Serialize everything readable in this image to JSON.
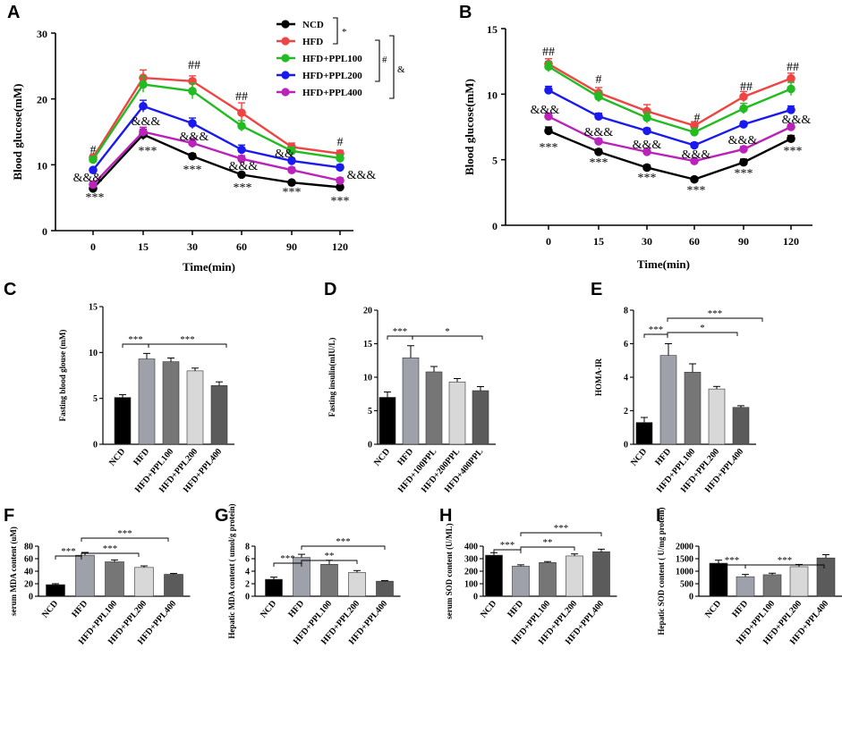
{
  "colors": {
    "NCD": "#000000",
    "HFD": "#ee4444",
    "HFD+PPL100": "#22bb22",
    "HFD+PPL200": "#1a1aee",
    "HFD+PPL400": "#bb22bb"
  },
  "legend": {
    "items": [
      "NCD",
      "HFD",
      "HFD+PPL100",
      "HFD+PPL200",
      "HFD+PPL400"
    ],
    "sig_ncd_hfd": "*",
    "sig_hfd_group": "#",
    "sig_all": "&"
  },
  "chart_data": [
    {
      "id": "A",
      "type": "line",
      "ylabel": "Blood glucose(mM)",
      "xlabel": "Time(min)",
      "x": [
        "0",
        "15",
        "30",
        "60",
        "90",
        "120"
      ],
      "ylim": [
        0,
        30
      ],
      "yticks": [
        0,
        10,
        20,
        30
      ],
      "series": [
        {
          "name": "NCD",
          "values": [
            6.4,
            14.6,
            11.3,
            8.5,
            7.3,
            6.6
          ],
          "err": [
            0.3,
            0.8,
            0.4,
            0.3,
            0.3,
            0.3
          ]
        },
        {
          "name": "HFD",
          "values": [
            11.1,
            23.2,
            22.7,
            17.9,
            12.7,
            11.7
          ],
          "err": [
            0.4,
            1.2,
            0.8,
            1.5,
            0.6,
            0.5
          ]
        },
        {
          "name": "HFD+PPL100",
          "values": [
            10.8,
            22.2,
            21.2,
            15.9,
            12.1,
            11.0
          ],
          "err": [
            0.4,
            1.2,
            1.2,
            0.8,
            0.6,
            0.5
          ]
        },
        {
          "name": "HFD+PPL200",
          "values": [
            9.2,
            18.9,
            16.3,
            12.3,
            10.6,
            9.6
          ],
          "err": [
            0.3,
            0.9,
            0.8,
            0.7,
            0.4,
            0.4
          ]
        },
        {
          "name": "HFD+PPL400",
          "values": [
            7.0,
            15.0,
            13.3,
            10.9,
            9.2,
            7.6
          ],
          "err": [
            0.3,
            0.7,
            0.7,
            0.5,
            0.4,
            0.4
          ]
        }
      ],
      "annotations": [
        "#",
        "&&&",
        "***",
        "&&&",
        "***",
        "##",
        "&&&",
        "***",
        "##",
        "&&&",
        "***",
        "&&",
        "***",
        "#",
        "&&&",
        "***"
      ]
    },
    {
      "id": "B",
      "type": "line",
      "ylabel": "Blood glucose(mM)",
      "xlabel": "Time(min)",
      "x": [
        "0",
        "15",
        "30",
        "60",
        "90",
        "120"
      ],
      "ylim": [
        0,
        15
      ],
      "yticks": [
        0,
        5,
        10,
        15
      ],
      "series": [
        {
          "name": "NCD",
          "values": [
            7.2,
            5.6,
            4.4,
            3.5,
            4.8,
            6.6
          ],
          "err": [
            0.3,
            0.2,
            0.2,
            0.15,
            0.25,
            0.25
          ]
        },
        {
          "name": "HFD",
          "values": [
            12.3,
            10.1,
            8.7,
            7.6,
            9.8,
            11.2
          ],
          "err": [
            0.4,
            0.4,
            0.5,
            0.3,
            0.4,
            0.4
          ]
        },
        {
          "name": "HFD+PPL100",
          "values": [
            12.1,
            9.8,
            8.2,
            7.1,
            8.9,
            10.4
          ],
          "err": [
            0.4,
            0.4,
            0.4,
            0.3,
            0.4,
            0.5
          ]
        },
        {
          "name": "HFD+PPL200",
          "values": [
            10.3,
            8.3,
            7.2,
            6.1,
            7.7,
            8.8
          ],
          "err": [
            0.3,
            0.25,
            0.2,
            0.2,
            0.2,
            0.3
          ]
        },
        {
          "name": "HFD+PPL400",
          "values": [
            8.3,
            6.4,
            5.6,
            4.9,
            5.8,
            7.5
          ],
          "err": [
            0.25,
            0.2,
            0.2,
            0.15,
            0.2,
            0.2
          ]
        }
      ],
      "annotations": [
        "##",
        "&&&",
        "***",
        "#",
        "&&&",
        "***",
        "&&&",
        "***",
        "#",
        "&&&",
        "***",
        "##",
        "&&&",
        "***",
        "##",
        "&&&",
        "***"
      ]
    },
    {
      "id": "C",
      "type": "bar",
      "ylabel": "Fasting blood glouse (mM)",
      "categories": [
        "NCD",
        "HFD",
        "HFD+PPL100",
        "HFD+PPL200",
        "HFD+PPL400"
      ],
      "values": [
        5.1,
        9.3,
        9.0,
        8.0,
        6.4
      ],
      "err": [
        0.3,
        0.6,
        0.4,
        0.3,
        0.4
      ],
      "ylim": [
        0,
        15
      ],
      "yticks": [
        0,
        5,
        10,
        15
      ],
      "sig": [
        {
          "label": "***"
        },
        {
          "label": "***"
        }
      ]
    },
    {
      "id": "D",
      "type": "bar",
      "ylabel": "Fasting insulin(mIU/L)",
      "categories": [
        "NCD",
        "HFD",
        "HFD+100PPL",
        "HFD+200PPL",
        "HFD+400PPL"
      ],
      "values": [
        7.0,
        12.9,
        10.8,
        9.3,
        8.0
      ],
      "err": [
        0.8,
        1.8,
        0.8,
        0.5,
        0.6
      ],
      "ylim": [
        0,
        20
      ],
      "yticks": [
        0,
        5,
        10,
        15,
        20
      ],
      "sig": [
        {
          "label": "***"
        },
        {
          "label": "*"
        }
      ]
    },
    {
      "id": "E",
      "type": "bar",
      "ylabel": "HOMA-IR",
      "categories": [
        "NCD",
        "HFD",
        "HFD+PPL100",
        "HFD+PPL200",
        "HFD+PPL400"
      ],
      "values": [
        1.3,
        5.3,
        4.3,
        3.3,
        2.2
      ],
      "err": [
        0.3,
        0.7,
        0.5,
        0.15,
        0.1
      ],
      "ylim": [
        0,
        8
      ],
      "yticks": [
        0,
        2,
        4,
        6,
        8
      ],
      "sig": [
        {
          "label": "***"
        },
        {
          "label": "*"
        },
        {
          "label": "***"
        }
      ]
    },
    {
      "id": "F",
      "type": "bar",
      "ylabel": "serum MDA content (uM)",
      "categories": [
        "NCD",
        "HFD",
        "HFD+PPL100",
        "HFD+PPL200",
        "HFD+PPL400"
      ],
      "values": [
        18.5,
        65.5,
        55.0,
        46.0,
        35.0
      ],
      "err": [
        1.5,
        4.5,
        3.0,
        2.5,
        1.5
      ],
      "ylim": [
        0,
        80
      ],
      "yticks": [
        0,
        20,
        40,
        60,
        80
      ],
      "sig": [
        {
          "label": "***"
        },
        {
          "label": "***"
        },
        {
          "label": "***"
        }
      ]
    },
    {
      "id": "G",
      "type": "bar",
      "ylabel": "Hepatic MDA content ( umol/g protein)",
      "categories": [
        "NCD",
        "HFD",
        "HFD+PPL100",
        "HFD+PPL200",
        "HFD+PPL400"
      ],
      "values": [
        2.7,
        6.2,
        5.1,
        3.8,
        2.4
      ],
      "err": [
        0.35,
        0.5,
        0.65,
        0.3,
        0.1
      ],
      "ylim": [
        0,
        8
      ],
      "yticks": [
        0,
        2,
        4,
        6,
        8
      ],
      "sig": [
        {
          "label": "***"
        },
        {
          "label": "**"
        },
        {
          "label": "***"
        }
      ]
    },
    {
      "id": "H",
      "type": "bar",
      "ylabel": "serum SOD content (U/ML)",
      "categories": [
        "NCD",
        "HFD",
        "HFD+PPL100",
        "HFD+PPL200",
        "HFD+PPL400"
      ],
      "values": [
        328,
        241,
        269,
        322,
        356
      ],
      "err": [
        20,
        10,
        8,
        16,
        20
      ],
      "ylim": [
        0,
        400
      ],
      "yticks": [
        0,
        100,
        200,
        300,
        400
      ],
      "sig": [
        {
          "label": "***"
        },
        {
          "label": "**"
        },
        {
          "label": "***"
        }
      ]
    },
    {
      "id": "I",
      "type": "bar",
      "ylabel": "Hepatic SOD content ( U/mg protein)",
      "categories": [
        "NCD",
        "HFD",
        "HFD+PPL100",
        "HFD+PPL200",
        "HFD+PPL400"
      ],
      "values": [
        1320,
        780,
        860,
        1180,
        1530
      ],
      "err": [
        120,
        90,
        60,
        90,
        130
      ],
      "ylim": [
        0,
        2000
      ],
      "yticks": [
        0,
        500,
        1000,
        1500,
        2000
      ],
      "sig": [
        {
          "label": "***"
        },
        {
          "label": "***"
        }
      ]
    }
  ]
}
